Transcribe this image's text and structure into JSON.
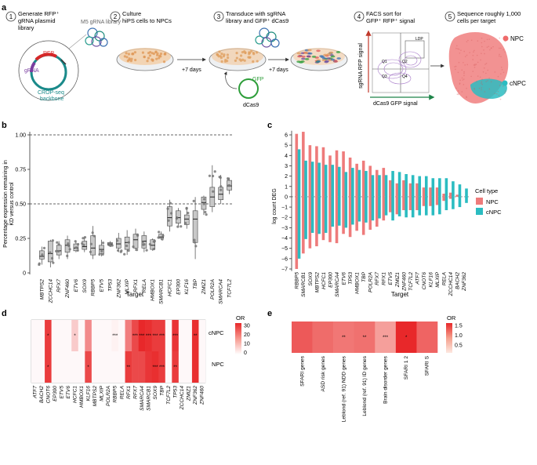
{
  "panel_a": {
    "letter": "a",
    "steps": [
      {
        "num": "1",
        "lines": [
          "Generate RFP⁺",
          "gRNA plasmid",
          "library"
        ]
      },
      {
        "num": "2",
        "lines": [
          "Culture",
          "hiPS cells to NPCs"
        ]
      },
      {
        "num": "3",
        "lines": [
          "Transduce with sgRNA",
          "library and GFP⁺ dCas9"
        ]
      },
      {
        "num": "4",
        "lines": [
          "FACS sort for",
          "GFP⁺ RFP⁺ signal"
        ]
      },
      {
        "num": "5",
        "lines": [
          "Sequence roughly 1,000",
          "cells per target"
        ]
      }
    ],
    "m5_label": "M5 gRNA library",
    "plasmid_labels": {
      "rfp": "RFP",
      "grna": "gRNA",
      "backbone": [
        "CROP-seq",
        "backbone"
      ]
    },
    "arrow_labels": [
      "+7 days",
      "+7 days"
    ],
    "gfp_label": "GFP",
    "dcas9_label": "dCas9",
    "facs": {
      "ylabel": "sgRNA RFP signal",
      "xlabel": "dCas9 GFP signal",
      "gates": [
        "Q1",
        "Q2",
        "Q3",
        "Q4",
        "LDP"
      ]
    },
    "umap_labels": {
      "npc": "NPC",
      "cnpc": "cNPC"
    }
  },
  "panel_b": {
    "letter": "b",
    "chart_data": {
      "type": "box",
      "title": "",
      "ylabel": [
        "Percentage expression remaining in",
        "KD versus control"
      ],
      "xlabel": "Target",
      "ylim": [
        0,
        1.0
      ],
      "yticks": [
        "0",
        "0.25",
        "0.50",
        "0.75",
        "1.00"
      ],
      "reference_lines": [
        0.5,
        1.0
      ],
      "categories": [
        "MBTPS2",
        "ZCCHC14",
        "RFX7",
        "ZNF460",
        "ETV6",
        "SOX9",
        "RBBP5",
        "ETV5",
        "TP53",
        "ZNF362",
        "MLXIP",
        "RFX1",
        "RELA",
        "HMBOX1",
        "SMARCB1",
        "HCFC1",
        "EP300",
        "KLF16",
        "TBP",
        "ZMIZ1",
        "POLR2A",
        "SMARCA4",
        "TCF7L2"
      ],
      "medians": [
        0.12,
        0.14,
        0.16,
        0.2,
        0.18,
        0.19,
        0.18,
        0.17,
        0.21,
        0.21,
        0.22,
        0.24,
        0.23,
        0.2,
        0.26,
        0.4,
        0.4,
        0.39,
        0.39,
        0.51,
        0.55,
        0.57,
        0.63
      ],
      "q1": [
        0.1,
        0.08,
        0.13,
        0.15,
        0.16,
        0.17,
        0.13,
        0.14,
        0.2,
        0.18,
        0.17,
        0.18,
        0.18,
        0.17,
        0.25,
        0.34,
        0.36,
        0.35,
        0.22,
        0.46,
        0.48,
        0.53,
        0.6
      ],
      "q3": [
        0.16,
        0.23,
        0.2,
        0.24,
        0.21,
        0.23,
        0.27,
        0.2,
        0.22,
        0.25,
        0.26,
        0.28,
        0.27,
        0.24,
        0.28,
        0.48,
        0.45,
        0.42,
        0.45,
        0.55,
        0.62,
        0.62,
        0.67
      ],
      "whisker_lo": [
        0.06,
        0.04,
        0.1,
        0.1,
        0.15,
        0.15,
        0.1,
        0.12,
        0.19,
        0.15,
        0.13,
        0.16,
        0.15,
        0.16,
        0.24,
        0.3,
        0.33,
        0.32,
        0.1,
        0.42,
        0.44,
        0.5,
        0.57
      ],
      "whisker_hi": [
        0.19,
        0.24,
        0.23,
        0.27,
        0.23,
        0.26,
        0.34,
        0.24,
        0.23,
        0.29,
        0.31,
        0.32,
        0.3,
        0.25,
        0.3,
        0.53,
        0.47,
        0.47,
        0.55,
        0.56,
        0.78,
        0.71,
        0.69
      ]
    }
  },
  "panel_c": {
    "letter": "c",
    "chart_data": {
      "type": "bar",
      "ylabel": "log count DEG",
      "xlabel": "Target",
      "ylim": [
        -7,
        6.5
      ],
      "yticks": [
        "6",
        "5",
        "4",
        "3",
        "2",
        "1",
        "0",
        "−1",
        "−2",
        "−3",
        "−4",
        "−5",
        "−6",
        "−7"
      ],
      "categories": [
        "RBBP5",
        "SMARCB1",
        "SOX9",
        "MBTPS2",
        "HCFC1",
        "EP300",
        "SMARCA4",
        "ETV6",
        "TP53",
        "HMBOX1",
        "TBP",
        "POLR2A",
        "RFX7",
        "RFX1",
        "ETV5",
        "ZMIZ1",
        "ZNF460",
        "TCF7L2",
        "ATF7",
        "CNOT6",
        "KLF16",
        "MLXIP",
        "RELA",
        "ZCCHC14",
        "BACH2",
        "ZNF362"
      ],
      "series": [
        {
          "name": "NPC",
          "color": "#ee7b7b",
          "up": [
            6.1,
            6.3,
            5.0,
            4.9,
            4.8,
            4.0,
            4.5,
            4.4,
            3.8,
            3.2,
            3.5,
            3.0,
            2.6,
            2.8,
            1.6,
            1.3,
            1.6,
            1.3,
            1.3,
            0.9,
            0.9,
            0.9,
            0.3,
            0.4,
            0.2,
            0.0
          ],
          "down": [
            -7.0,
            -5.5,
            -5.0,
            -4.8,
            -4.2,
            -4.4,
            -4.5,
            -3.6,
            -3.9,
            -3.3,
            -3.7,
            -3.2,
            -2.9,
            -2.3,
            -1.5,
            -1.7,
            -1.3,
            -1.3,
            -1.3,
            -0.9,
            -0.9,
            -0.8,
            -0.4,
            -0.2,
            0.0,
            0.0
          ]
        },
        {
          "name": "cNPC",
          "color": "#2bbcc1",
          "up": [
            4.6,
            3.5,
            3.4,
            3.3,
            3.1,
            3.1,
            2.9,
            2.4,
            2.8,
            2.6,
            2.5,
            2.1,
            2.1,
            2.1,
            2.5,
            2.4,
            2.2,
            2.1,
            2.0,
            2.0,
            1.8,
            1.8,
            1.8,
            1.5,
            1.2,
            0.8
          ],
          "down": [
            -6.0,
            -4.1,
            -3.5,
            -3.6,
            -3.5,
            -2.9,
            -2.8,
            -3.0,
            -2.7,
            -2.4,
            -2.5,
            -2.3,
            -2.1,
            -1.8,
            -2.3,
            -1.9,
            -2.0,
            -2.0,
            -1.8,
            -1.8,
            -1.8,
            -1.7,
            -1.3,
            -1.2,
            -1.0,
            -0.6
          ]
        }
      ],
      "legend_title": "Cell type"
    }
  },
  "panel_d": {
    "letter": "d",
    "chart_data": {
      "type": "heatmap",
      "rows": [
        "cNPC",
        "NPC"
      ],
      "columns": [
        "ATF7",
        "BACH2",
        "CNOT6",
        "EP300",
        "ETV5",
        "ETV6",
        "HCFC1",
        "HMBOX1",
        "KLF16",
        "MBTPS2",
        "MLXIP",
        "POLR2A",
        "RBBP5",
        "RELA",
        "RFX1",
        "RFX7",
        "SMARCA4",
        "SMARCB1",
        "SOX9",
        "TBP",
        "TCF7L2",
        "TP53",
        "ZCCHC14",
        "ZMIZ1",
        "ZNF362",
        "ZNF460"
      ],
      "values": [
        [
          1,
          1,
          30,
          1,
          1,
          1,
          8,
          1,
          18,
          1,
          1,
          1,
          2,
          1,
          20,
          28,
          33,
          32,
          30,
          30,
          1,
          31,
          1,
          1,
          32,
          1
        ],
        [
          1,
          1,
          30,
          1,
          1,
          1,
          1,
          1,
          28,
          1,
          1,
          1,
          1,
          1,
          30,
          28,
          28,
          31,
          32,
          30,
          1,
          30,
          1,
          1,
          32,
          1
        ]
      ],
      "stars": [
        [
          "",
          "",
          "*",
          "",
          "",
          "",
          "*",
          "",
          "",
          "",
          "",
          "",
          "***",
          "",
          "",
          "***",
          "***",
          "***",
          "***",
          "***",
          "",
          "***",
          "",
          "",
          "**",
          ""
        ],
        [
          "",
          "",
          "*",
          "",
          "",
          "",
          "",
          "",
          "*",
          "",
          "",
          "",
          "",
          "",
          "**",
          "",
          "",
          "",
          "***",
          "***",
          "",
          "**",
          "",
          "",
          "",
          ""
        ]
      ],
      "legend_title": "OR",
      "legend_ticks": [
        "30",
        "20",
        "10",
        "0"
      ]
    }
  },
  "panel_e": {
    "letter": "e",
    "chart_data": {
      "type": "heatmap",
      "columns": [
        "SFARI genes",
        "ASD risk genes",
        "Leblond (ref. 91) NDD genes",
        "Leblond (ref. 91) ID genes",
        "Brain disorder genes",
        "SFARI 1 2",
        "SFARI S"
      ],
      "values": [
        1.28,
        1.18,
        1.12,
        1.15,
        0.9,
        1.55,
        1.22
      ],
      "stars": [
        "",
        "",
        "**",
        "**",
        "***",
        "*",
        ""
      ],
      "legend_title": "OR",
      "legend_ticks": [
        "1.5",
        "1.0",
        "0.5"
      ]
    }
  }
}
